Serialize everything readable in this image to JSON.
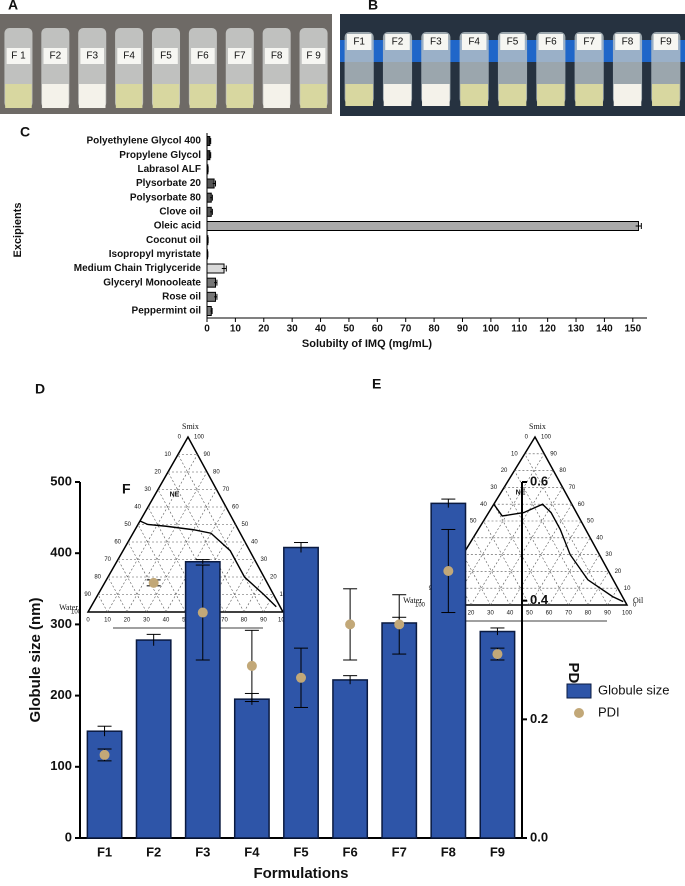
{
  "photos": [
    {
      "panel": "A",
      "labels": [
        "F 1",
        "F2",
        "F3",
        "F4",
        "F5",
        "F6",
        "F7",
        "F8",
        "F 9"
      ]
    },
    {
      "panel": "B",
      "labels": [
        "F1",
        "F2",
        "F3",
        "F4",
        "F5",
        "F6",
        "F7",
        "F8",
        "F9"
      ]
    }
  ],
  "chart_data": [
    {
      "type": "hbar",
      "panel": "C",
      "xlabel": "Solubilty of IMQ (mg/mL)",
      "ylabel": "Excipients",
      "categories": [
        "Polyethylene Glycol 400",
        "Propylene Glycol",
        "Labrasol ALF",
        "Plysorbate 20",
        "Polysorbate 80",
        "Clove oil",
        "Oleic acid",
        "Coconut oil",
        "Isopropyl myristate",
        "Medium Chain Triglyceride",
        "Glyceryl Monooleate",
        "Rose oil",
        "Peppermint oil"
      ],
      "values": [
        1,
        1,
        0.3,
        2.5,
        1.5,
        1.5,
        152,
        0.3,
        0.2,
        6,
        3,
        3,
        1.5
      ],
      "errors": [
        0.3,
        0.3,
        0.1,
        0.5,
        0.4,
        0.4,
        1,
        0.1,
        0.1,
        0.8,
        0.5,
        0.5,
        0.3
      ],
      "colors": [
        "#333333",
        "#333333",
        "#333333",
        "#555555",
        "#555555",
        "#555555",
        "#aaaaaa",
        "#aaaaaa",
        "#aaaaaa",
        "#d9d9d9",
        "#777777",
        "#777777",
        "#777777"
      ],
      "xlim": [
        0,
        155
      ],
      "xticks": [
        0,
        10,
        20,
        30,
        40,
        50,
        60,
        70,
        80,
        90,
        100,
        110,
        120,
        130,
        140,
        150
      ]
    },
    {
      "type": "ternary",
      "panel": "D",
      "top": "Smix",
      "left": "Water",
      "right": "Oil",
      "region": "NE",
      "ticks": [
        0,
        10,
        20,
        30,
        40,
        50,
        60,
        70,
        80,
        90,
        100
      ],
      "boundary": [
        {
          "oil": 0,
          "smix": 52
        },
        {
          "oil": 5,
          "smix": 50
        },
        {
          "oil": 15,
          "smix": 49
        },
        {
          "oil": 30,
          "smix": 47
        },
        {
          "oil": 40,
          "smix": 45
        },
        {
          "oil": 55,
          "smix": 35
        },
        {
          "oil": 70,
          "smix": 20
        },
        {
          "oil": 85,
          "smix": 10
        },
        {
          "oil": 95,
          "smix": 3
        }
      ]
    },
    {
      "type": "ternary",
      "panel": "E",
      "top": "Smix",
      "left": "Water",
      "right": "Oil",
      "region": "NE",
      "ticks": [
        0,
        10,
        20,
        30,
        40,
        50,
        60,
        70,
        80,
        90,
        100
      ],
      "boundary": [
        {
          "oil": 0,
          "smix": 60
        },
        {
          "oil": 8,
          "smix": 53
        },
        {
          "oil": 18,
          "smix": 55
        },
        {
          "oil": 25,
          "smix": 60
        },
        {
          "oil": 32,
          "smix": 55
        },
        {
          "oil": 42,
          "smix": 45
        },
        {
          "oil": 55,
          "smix": 30
        },
        {
          "oil": 72,
          "smix": 15
        },
        {
          "oil": 90,
          "smix": 5
        },
        {
          "oil": 97,
          "smix": 2
        }
      ]
    },
    {
      "type": "combo",
      "panel": "F",
      "xlabel": "Formulations",
      "ylabel": "Globule size (nm)",
      "y2label": "PDI",
      "legend": "right",
      "categories": [
        "F1",
        "F2",
        "F3",
        "F4",
        "F5",
        "F6",
        "F7",
        "F8",
        "F9"
      ],
      "series": [
        {
          "name": "Globule size",
          "color": "#2e55a8",
          "values": [
            150,
            278,
            388,
            195,
            408,
            222,
            302,
            470,
            290
          ],
          "errors": [
            7,
            8,
            3,
            8,
            7,
            6,
            8,
            6,
            5
          ]
        },
        {
          "name": "PDI",
          "color": "#c2a878",
          "axis": "y2",
          "values": [
            0.14,
            0.43,
            0.38,
            0.29,
            0.27,
            0.36,
            0.36,
            0.45,
            0.31
          ],
          "errors": [
            0.01,
            0.005,
            0.08,
            0.06,
            0.05,
            0.06,
            0.05,
            0.07,
            0.01
          ]
        }
      ],
      "ylim": [
        0,
        500
      ],
      "yticks": [
        0,
        100,
        200,
        300,
        400,
        500
      ],
      "y2lim": [
        0,
        0.6
      ],
      "y2ticks": [
        {
          "value": 0,
          "label": "0.0"
        },
        0.2,
        0.4,
        0.6
      ]
    }
  ]
}
